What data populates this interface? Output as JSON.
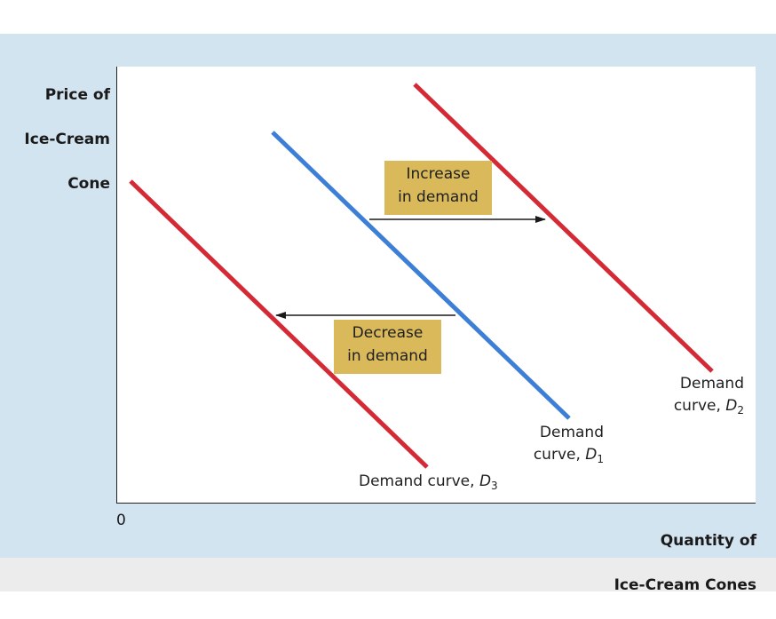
{
  "axes": {
    "y_label_lines": [
      "Price of",
      "Ice-Cream",
      "Cone"
    ],
    "x_label_lines": [
      "Quantity of",
      "Ice-Cream Cones"
    ],
    "origin": "0"
  },
  "annotations": {
    "increase": [
      "Increase",
      "in demand"
    ],
    "decrease": [
      "Decrease",
      "in demand"
    ]
  },
  "curves": {
    "d1": {
      "prefix_line1": "Demand",
      "prefix_line2": "curve, ",
      "symbol": "D",
      "subscript": "1",
      "color": "#3d7fd6"
    },
    "d2": {
      "prefix_line1": "Demand",
      "prefix_line2": "curve, ",
      "symbol": "D",
      "subscript": "2",
      "color": "#d42a35"
    },
    "d3": {
      "prefix_line1": "Demand curve, ",
      "symbol": "D",
      "subscript": "3",
      "color": "#d42a35"
    }
  },
  "colors": {
    "panel_bg": "#d3e4f1",
    "box_bg": "#d9b95a",
    "arrow": "#1a1a1a"
  }
}
